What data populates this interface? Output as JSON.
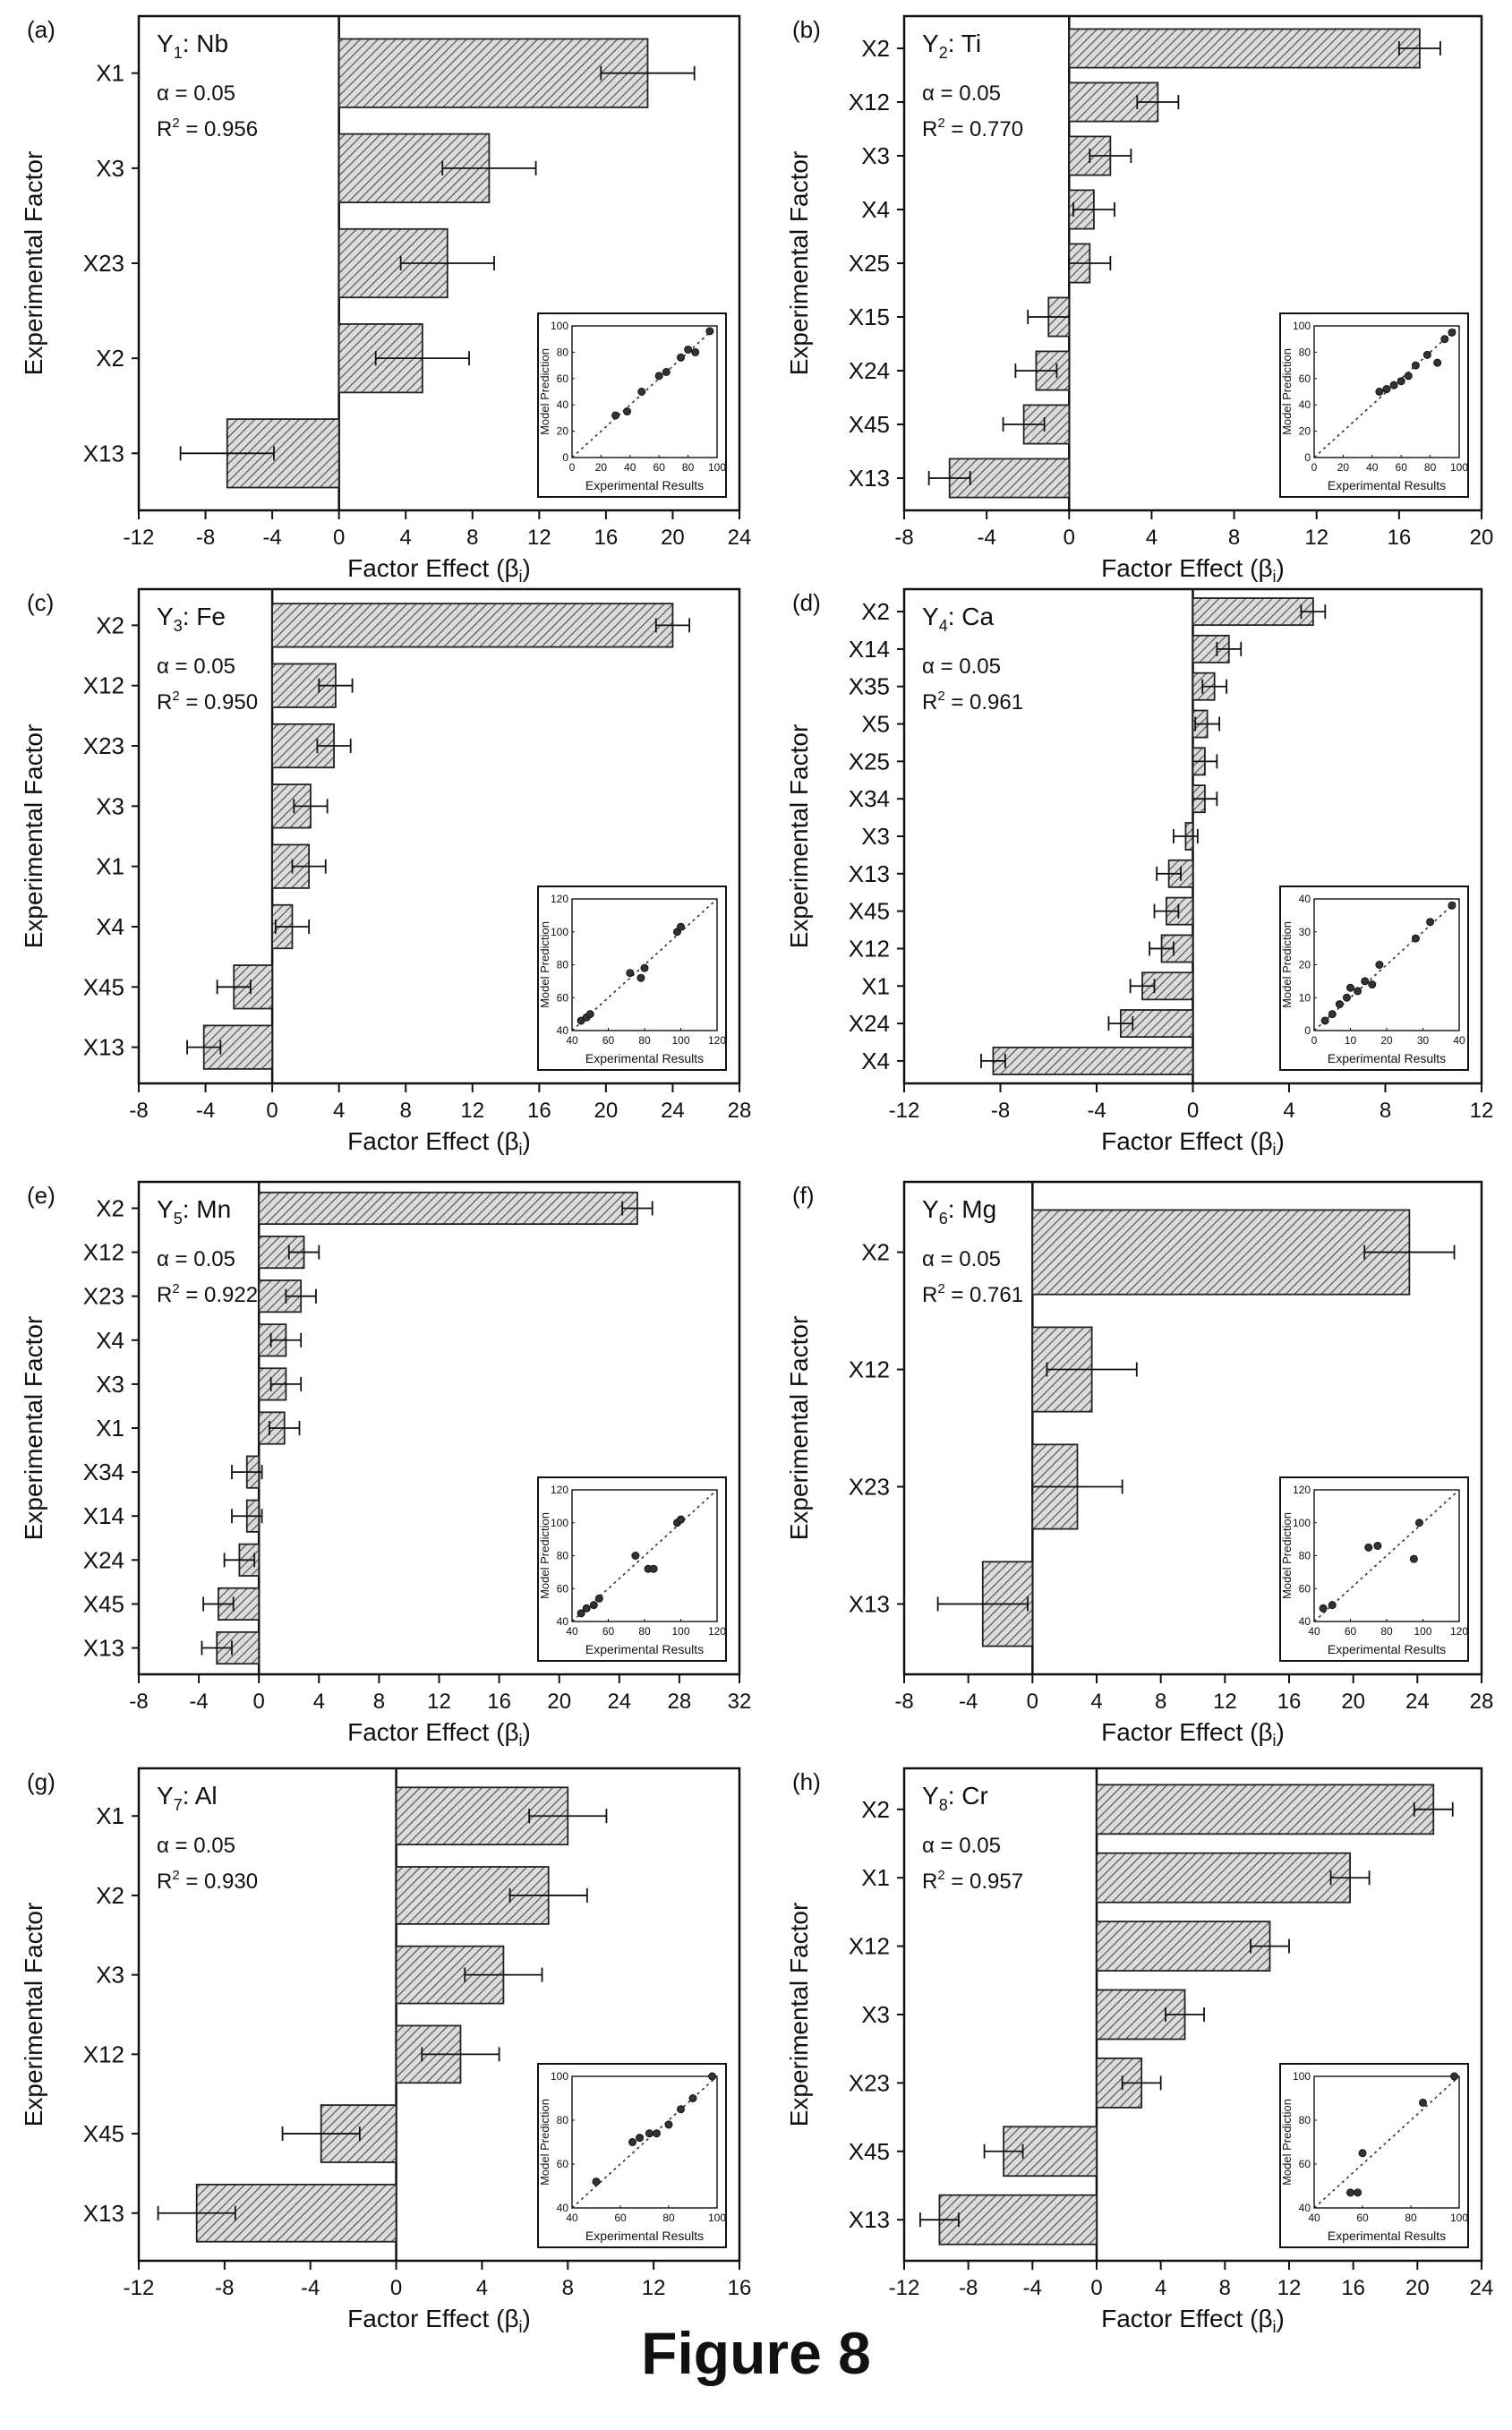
{
  "figure": {
    "caption": "Figure 8"
  },
  "colors": {
    "bar_fill": "#dcdcdc",
    "bar_hatch": "#555555",
    "axis": "#111111",
    "background": "#ffffff"
  },
  "chart_data": [
    {
      "panel": "(a)",
      "type": "bar",
      "orientation": "horizontal",
      "title_main": "Y",
      "title_sub": "1",
      "title_rest": ": Nb",
      "alpha": "α = 0.05",
      "r2_label": "R",
      "r2_value": " = 0.956",
      "ylabel": "Experimental Factor",
      "xlabel": "Factor Effect (β",
      "xlim": [
        -12,
        24
      ],
      "xticks": [
        -12,
        -8,
        -4,
        0,
        4,
        8,
        12,
        16,
        20,
        24
      ],
      "categories": [
        "X1",
        "X3",
        "X23",
        "X2",
        "X13"
      ],
      "values": [
        18.5,
        9.0,
        6.5,
        5.0,
        -6.7
      ],
      "errors": [
        2.8,
        2.8,
        2.8,
        2.8,
        2.8
      ],
      "inset": {
        "ylabel": "Model Prediction",
        "xlabel": "Experimental Results",
        "range": [
          0,
          100
        ],
        "ticks": [
          0,
          20,
          40,
          60,
          80,
          100
        ],
        "points": [
          [
            30,
            32
          ],
          [
            38,
            35
          ],
          [
            48,
            50
          ],
          [
            60,
            62
          ],
          [
            65,
            65
          ],
          [
            75,
            76
          ],
          [
            80,
            82
          ],
          [
            85,
            80
          ],
          [
            95,
            96
          ]
        ]
      }
    },
    {
      "panel": "(b)",
      "type": "bar",
      "orientation": "horizontal",
      "title_main": "Y",
      "title_sub": "2",
      "title_rest": ": Ti",
      "alpha": "α = 0.05",
      "r2_label": "R",
      "r2_value": " = 0.770",
      "ylabel": "Experimental Factor",
      "xlabel": "Factor Effect (β",
      "xlim": [
        -8,
        20
      ],
      "xticks": [
        -8,
        -4,
        0,
        4,
        8,
        12,
        16,
        20
      ],
      "categories": [
        "X2",
        "X12",
        "X3",
        "X4",
        "X25",
        "X15",
        "X24",
        "X45",
        "X13"
      ],
      "values": [
        17.0,
        4.3,
        2.0,
        1.2,
        1.0,
        -1.0,
        -1.6,
        -2.2,
        -5.8
      ],
      "errors": [
        1.0,
        1.0,
        1.0,
        1.0,
        1.0,
        1.0,
        1.0,
        1.0,
        1.0
      ],
      "inset": {
        "ylabel": "Model Prediction",
        "xlabel": "Experimental Results",
        "range": [
          0,
          100
        ],
        "ticks": [
          0,
          20,
          40,
          60,
          80,
          100
        ],
        "points": [
          [
            45,
            50
          ],
          [
            50,
            52
          ],
          [
            55,
            55
          ],
          [
            60,
            58
          ],
          [
            65,
            62
          ],
          [
            70,
            70
          ],
          [
            78,
            78
          ],
          [
            85,
            72
          ],
          [
            90,
            90
          ],
          [
            95,
            95
          ]
        ]
      }
    },
    {
      "panel": "(c)",
      "type": "bar",
      "orientation": "horizontal",
      "title_main": "Y",
      "title_sub": "3",
      "title_rest": ": Fe",
      "alpha": "α = 0.05",
      "r2_label": "R",
      "r2_value": " = 0.950",
      "ylabel": "Experimental Factor",
      "xlabel": "Factor Effect (β",
      "xlim": [
        -8,
        28
      ],
      "xticks": [
        -8,
        -4,
        0,
        4,
        8,
        12,
        16,
        20,
        24,
        28
      ],
      "categories": [
        "X2",
        "X12",
        "X23",
        "X3",
        "X1",
        "X4",
        "X45",
        "X13"
      ],
      "values": [
        24.0,
        3.8,
        3.7,
        2.3,
        2.2,
        1.2,
        -2.3,
        -4.1
      ],
      "errors": [
        1.0,
        1.0,
        1.0,
        1.0,
        1.0,
        1.0,
        1.0,
        1.0
      ],
      "inset": {
        "ylabel": "Model Prediction",
        "xlabel": "Experimental Results",
        "range": [
          40,
          120
        ],
        "ticks": [
          40,
          60,
          80,
          100,
          120
        ],
        "points": [
          [
            45,
            46
          ],
          [
            48,
            48
          ],
          [
            50,
            50
          ],
          [
            72,
            75
          ],
          [
            78,
            72
          ],
          [
            80,
            78
          ],
          [
            98,
            100
          ],
          [
            100,
            103
          ]
        ]
      }
    },
    {
      "panel": "(d)",
      "type": "bar",
      "orientation": "horizontal",
      "title_main": "Y",
      "title_sub": "4",
      "title_rest": ": Ca",
      "alpha": "α = 0.05",
      "r2_label": "R",
      "r2_value": " = 0.961",
      "ylabel": "Experimental Factor",
      "xlabel": "Factor Effect (β",
      "xlim": [
        -12,
        12
      ],
      "xticks": [
        -12,
        -8,
        -4,
        0,
        4,
        8,
        12
      ],
      "categories": [
        "X2",
        "X14",
        "X35",
        "X5",
        "X25",
        "X34",
        "X3",
        "X13",
        "X45",
        "X12",
        "X1",
        "X24",
        "X4"
      ],
      "values": [
        5.0,
        1.5,
        0.9,
        0.6,
        0.5,
        0.5,
        -0.3,
        -1.0,
        -1.1,
        -1.3,
        -2.1,
        -3.0,
        -8.3
      ],
      "errors": [
        0.5,
        0.5,
        0.5,
        0.5,
        0.5,
        0.5,
        0.5,
        0.5,
        0.5,
        0.5,
        0.5,
        0.5,
        0.5
      ],
      "inset": {
        "ylabel": "Model Prediction",
        "xlabel": "Experimental Results",
        "range": [
          0,
          40
        ],
        "ticks": [
          0,
          10,
          20,
          30,
          40
        ],
        "points": [
          [
            3,
            3
          ],
          [
            5,
            5
          ],
          [
            7,
            8
          ],
          [
            9,
            10
          ],
          [
            10,
            13
          ],
          [
            12,
            12
          ],
          [
            14,
            15
          ],
          [
            16,
            14
          ],
          [
            18,
            20
          ],
          [
            28,
            28
          ],
          [
            32,
            33
          ],
          [
            38,
            38
          ]
        ]
      }
    },
    {
      "panel": "(e)",
      "type": "bar",
      "orientation": "horizontal",
      "title_main": "Y",
      "title_sub": "5",
      "title_rest": ": Mn",
      "alpha": "α = 0.05",
      "r2_label": "R",
      "r2_value": " = 0.922",
      "ylabel": "Experimental Factor",
      "xlabel": "Factor Effect (β",
      "xlim": [
        -8,
        32
      ],
      "xticks": [
        -8,
        -4,
        0,
        4,
        8,
        12,
        16,
        20,
        24,
        28,
        32
      ],
      "categories": [
        "X2",
        "X12",
        "X23",
        "X4",
        "X3",
        "X1",
        "X34",
        "X14",
        "X24",
        "X45",
        "X13"
      ],
      "values": [
        25.2,
        3.0,
        2.8,
        1.8,
        1.8,
        1.7,
        -0.8,
        -0.8,
        -1.3,
        -2.7,
        -2.8
      ],
      "errors": [
        1.0,
        1.0,
        1.0,
        1.0,
        1.0,
        1.0,
        1.0,
        1.0,
        1.0,
        1.0,
        1.0
      ],
      "inset": {
        "ylabel": "Model Prediction",
        "xlabel": "Experimental Results",
        "range": [
          40,
          120
        ],
        "ticks": [
          40,
          60,
          80,
          100,
          120
        ],
        "points": [
          [
            45,
            45
          ],
          [
            48,
            48
          ],
          [
            52,
            50
          ],
          [
            55,
            54
          ],
          [
            75,
            80
          ],
          [
            82,
            72
          ],
          [
            85,
            72
          ],
          [
            98,
            100
          ],
          [
            100,
            102
          ]
        ]
      }
    },
    {
      "panel": "(f)",
      "type": "bar",
      "orientation": "horizontal",
      "title_main": "Y",
      "title_sub": "6",
      "title_rest": ": Mg",
      "alpha": "α = 0.05",
      "r2_label": "R",
      "r2_value": " = 0.761",
      "ylabel": "Experimental Factor",
      "xlabel": "Factor Effect (β",
      "xlim": [
        -8,
        28
      ],
      "xticks": [
        -8,
        -4,
        0,
        4,
        8,
        12,
        16,
        20,
        24,
        28
      ],
      "categories": [
        "X2",
        "X12",
        "X23",
        "X13"
      ],
      "values": [
        23.5,
        3.7,
        2.8,
        -3.1
      ],
      "errors": [
        2.8,
        2.8,
        2.8,
        2.8
      ],
      "inset": {
        "ylabel": "Model Prediction",
        "xlabel": "Experimental Results",
        "range": [
          40,
          120
        ],
        "ticks": [
          40,
          60,
          80,
          100,
          120
        ],
        "points": [
          [
            45,
            48
          ],
          [
            50,
            50
          ],
          [
            70,
            85
          ],
          [
            75,
            86
          ],
          [
            95,
            78
          ],
          [
            98,
            100
          ]
        ]
      }
    },
    {
      "panel": "(g)",
      "type": "bar",
      "orientation": "horizontal",
      "title_main": "Y",
      "title_sub": "7",
      "title_rest": ": Al",
      "alpha": "α = 0.05",
      "r2_label": "R",
      "r2_value": " = 0.930",
      "ylabel": "Experimental Factor",
      "xlabel": "Factor Effect (β",
      "xlim": [
        -12,
        16
      ],
      "xticks": [
        -12,
        -8,
        -4,
        0,
        4,
        8,
        12,
        16
      ],
      "categories": [
        "X1",
        "X2",
        "X3",
        "X12",
        "X45",
        "X13"
      ],
      "values": [
        8.0,
        7.1,
        5.0,
        3.0,
        -3.5,
        -9.3
      ],
      "errors": [
        1.8,
        1.8,
        1.8,
        1.8,
        1.8,
        1.8
      ],
      "inset": {
        "ylabel": "Model Prediction",
        "xlabel": "Experimental Results",
        "range": [
          40,
          100
        ],
        "ticks": [
          40,
          60,
          80,
          100
        ],
        "points": [
          [
            50,
            52
          ],
          [
            65,
            70
          ],
          [
            68,
            72
          ],
          [
            72,
            74
          ],
          [
            75,
            74
          ],
          [
            80,
            78
          ],
          [
            85,
            85
          ],
          [
            90,
            90
          ],
          [
            98,
            100
          ]
        ]
      }
    },
    {
      "panel": "(h)",
      "type": "bar",
      "orientation": "horizontal",
      "title_main": "Y",
      "title_sub": "8",
      "title_rest": ": Cr",
      "alpha": "α = 0.05",
      "r2_label": "R",
      "r2_value": " = 0.957",
      "ylabel": "Experimental Factor",
      "xlabel": "Factor Effect (β",
      "xlim": [
        -12,
        24
      ],
      "xticks": [
        -12,
        -8,
        -4,
        0,
        4,
        8,
        12,
        16,
        20,
        24
      ],
      "categories": [
        "X2",
        "X1",
        "X12",
        "X3",
        "X23",
        "X45",
        "X13"
      ],
      "values": [
        21.0,
        15.8,
        10.8,
        5.5,
        2.8,
        -5.8,
        -9.8
      ],
      "errors": [
        1.2,
        1.2,
        1.2,
        1.2,
        1.2,
        1.2,
        1.2
      ],
      "inset": {
        "ylabel": "Model Prediction",
        "xlabel": "Experimental Results",
        "range": [
          40,
          100
        ],
        "ticks": [
          40,
          60,
          80,
          100
        ],
        "points": [
          [
            55,
            47
          ],
          [
            58,
            47
          ],
          [
            60,
            65
          ],
          [
            85,
            88
          ],
          [
            98,
            100
          ]
        ]
      }
    }
  ]
}
